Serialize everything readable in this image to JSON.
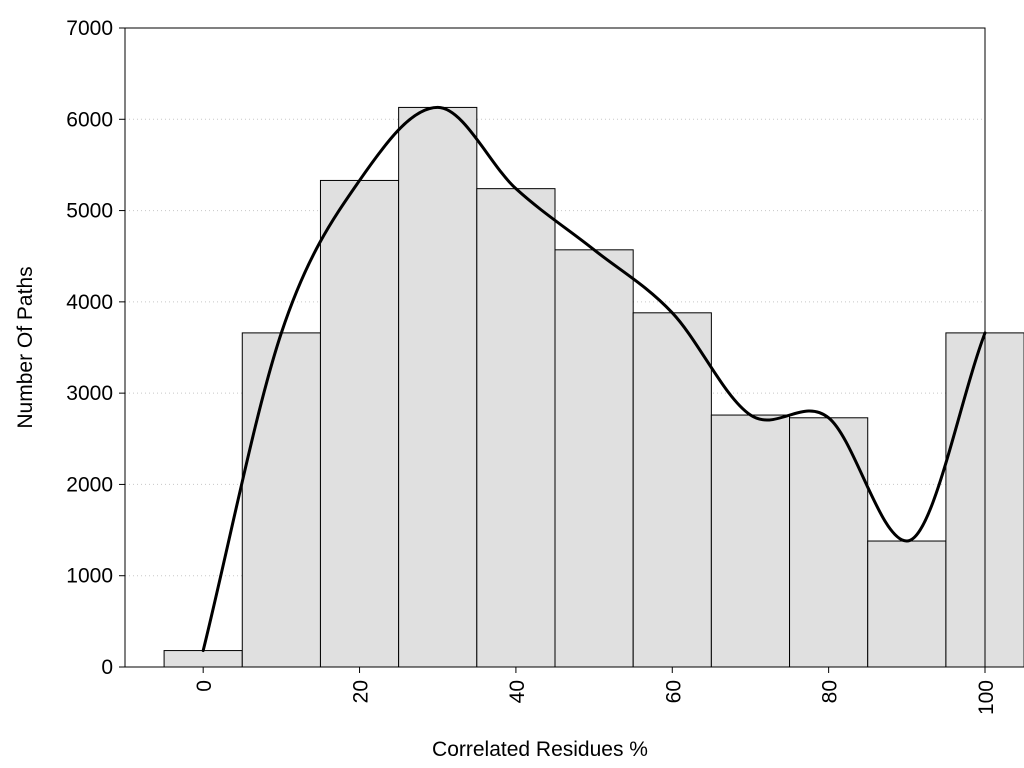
{
  "chart_data": {
    "type": "bar",
    "xlabel": "Correlated Residues %",
    "ylabel": "Number Of Paths",
    "xlim": [
      -10,
      100
    ],
    "ylim": [
      0,
      7000
    ],
    "grid": "horizontal dotted",
    "bar_color": "#e0e0e0",
    "bar_edge_color": "#000000",
    "line_color": "#000000",
    "x_ticks": [
      0,
      20,
      40,
      60,
      80,
      100
    ],
    "y_ticks": [
      0,
      1000,
      2000,
      3000,
      4000,
      5000,
      6000,
      7000
    ],
    "bin_width": 10,
    "bins": [
      0,
      10,
      20,
      30,
      40,
      50,
      60,
      70,
      80,
      90,
      100
    ],
    "values": [
      180,
      3660,
      5330,
      6130,
      5240,
      4570,
      3880,
      2760,
      2730,
      1380,
      3660
    ],
    "smooth_curve": {
      "x": [
        0,
        10,
        20,
        30,
        40,
        50,
        60,
        70,
        80,
        90,
        100
      ],
      "y": [
        180,
        3660,
        5330,
        6130,
        5240,
        4570,
        3880,
        2760,
        2730,
        1380,
        3660
      ]
    }
  }
}
